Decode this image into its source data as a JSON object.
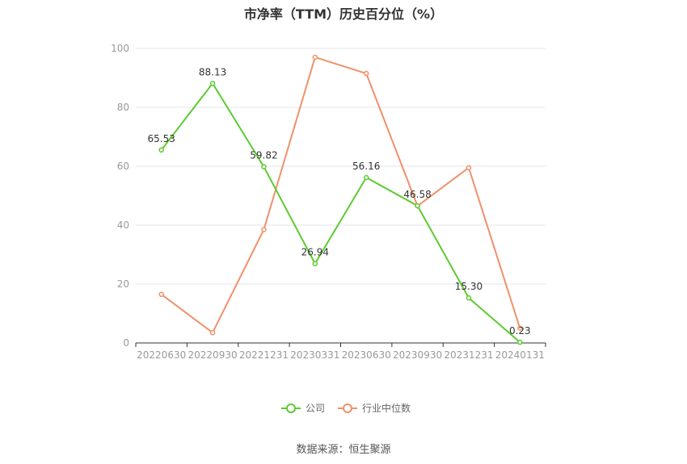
{
  "title": "市净率（TTM）历史百分位（%）",
  "source": "数据来源：恒生聚源",
  "colors": {
    "company": "#5ccb2f",
    "industry": "#f0906a",
    "grid": "#e6e6ee",
    "axis": "#333333"
  },
  "chart_data": {
    "type": "line",
    "title": "市净率（TTM）历史百分位（%）",
    "categories": [
      "20220630",
      "20220930",
      "20221231",
      "20230331",
      "20230630",
      "20230930",
      "20231231",
      "20240131"
    ],
    "ylim": [
      0,
      100
    ],
    "yticks": [
      0,
      20,
      40,
      60,
      80,
      100
    ],
    "grid": true,
    "legend_position": "bottom",
    "series": [
      {
        "name": "公司",
        "color": "#5ccb2f",
        "values": [
          65.53,
          88.13,
          59.82,
          26.94,
          56.16,
          46.58,
          15.3,
          0.23
        ],
        "labels": [
          "65.53",
          "88.13",
          "59.82",
          "26.94",
          "56.16",
          "46.58",
          "15.30",
          "0.23"
        ]
      },
      {
        "name": "行业中位数",
        "color": "#f0906a",
        "values": [
          16.5,
          3.5,
          38.5,
          97.0,
          91.5,
          46.5,
          59.5,
          5.0
        ]
      }
    ]
  }
}
